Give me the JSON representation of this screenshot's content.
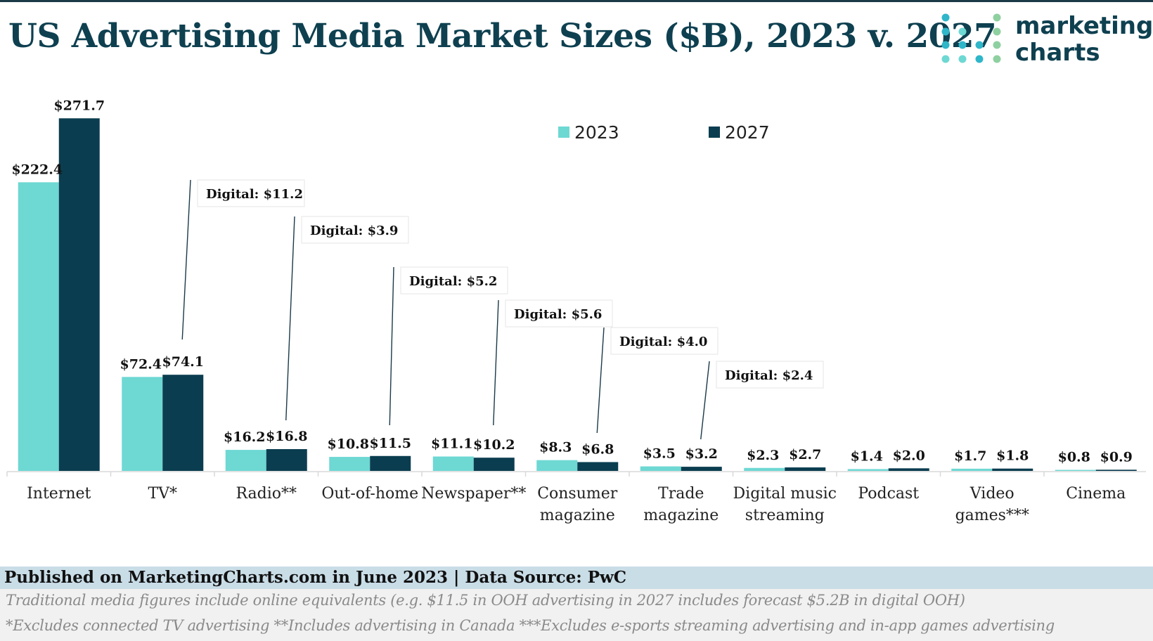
{
  "title": "US Advertising Media Market Sizes ($B), 2023 v. 2027",
  "logo": {
    "line1": "marketing",
    "line2": "charts"
  },
  "colors": {
    "series2023": "#6ed8d3",
    "series2027": "#0b3d50",
    "title": "#0e4050"
  },
  "chart_data": {
    "type": "bar",
    "title": "US Advertising Media Market Sizes ($B), 2023 v. 2027",
    "categories": [
      [
        "Internet"
      ],
      [
        "TV*"
      ],
      [
        "Radio**"
      ],
      [
        "Out-of-home"
      ],
      [
        "Newspaper**"
      ],
      [
        "Consumer",
        "magazine"
      ],
      [
        "Trade",
        "magazine"
      ],
      [
        "Digital music",
        "streaming"
      ],
      [
        "Podcast"
      ],
      [
        "Video",
        "games***"
      ],
      [
        "Cinema"
      ]
    ],
    "series": [
      {
        "name": "2023",
        "values": [
          222.4,
          72.4,
          16.2,
          10.8,
          11.1,
          8.3,
          3.5,
          2.3,
          1.4,
          1.7,
          0.8
        ],
        "labels": [
          "$222.4",
          "$72.4",
          "$16.2",
          "$10.8",
          "$11.1",
          "$8.3",
          "$3.5",
          "$2.3",
          "$1.4",
          "$1.7",
          "$0.8"
        ]
      },
      {
        "name": "2027",
        "values": [
          271.7,
          74.1,
          16.8,
          11.5,
          10.2,
          6.8,
          3.2,
          2.7,
          2.0,
          1.8,
          0.9
        ],
        "labels": [
          "$271.7",
          "$74.1",
          "$16.8",
          "$11.5",
          "$10.2",
          "$6.8",
          "$3.2",
          "$2.7",
          "$2.0",
          "$1.8",
          "$0.9"
        ]
      }
    ],
    "annotations": [
      {
        "category_index": 1,
        "text": "Digital: $11.2"
      },
      {
        "category_index": 2,
        "text": "Digital: $3.9"
      },
      {
        "category_index": 3,
        "text": "Digital: $5.2"
      },
      {
        "category_index": 4,
        "text": "Digital: $5.6"
      },
      {
        "category_index": 5,
        "text": "Digital: $4.0"
      },
      {
        "category_index": 6,
        "text": "Digital: $2.4"
      }
    ],
    "ylim": [
      0,
      280
    ],
    "grid": false,
    "legend_position": "top-center"
  },
  "footer": {
    "source": "Published on MarketingCharts.com in June 2023 | Data Source: PwC",
    "note1": "Traditional media figures include online equivalents (e.g. $11.5 in OOH advertising in 2027 includes forecast $5.2B in digital OOH)",
    "note2": "*Excludes connected TV advertising **Includes advertising in Canada ***Excludes e-sports streaming advertising and in-app games advertising"
  }
}
